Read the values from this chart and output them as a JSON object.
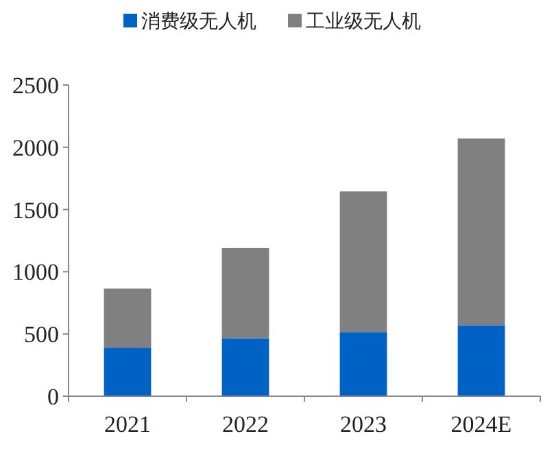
{
  "chart_data": {
    "type": "bar",
    "stacked": true,
    "categories": [
      "2021",
      "2022",
      "2023",
      "2024E"
    ],
    "series": [
      {
        "name": "消费级无人机",
        "color": "#0062c4",
        "values": [
          390,
          465,
          515,
          570
        ]
      },
      {
        "name": "工业级无人机",
        "color": "#808080",
        "values": [
          475,
          725,
          1130,
          1500
        ]
      }
    ],
    "ylim": [
      0,
      2500
    ],
    "yticks": [
      0,
      500,
      1000,
      1500,
      2000,
      2500
    ],
    "legend": "top",
    "grid": false
  }
}
